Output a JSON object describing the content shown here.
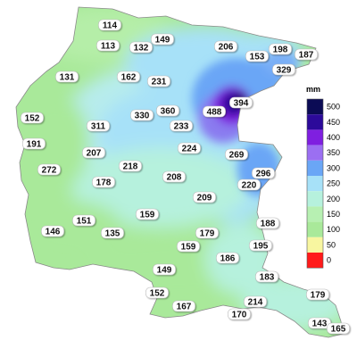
{
  "legend": {
    "unit": "mm",
    "ticks": [
      "500",
      "450",
      "400",
      "350",
      "300",
      "250",
      "200",
      "150",
      "100",
      "50",
      "0"
    ],
    "colors": [
      "#0b0b55",
      "#2c0a9a",
      "#7f1fe0",
      "#9b6ff2",
      "#6aa6f6",
      "#a7e1f8",
      "#b6f1dd",
      "#b7f0b2",
      "#a9e99a",
      "#f8f6a0",
      "#ff1b1b"
    ]
  },
  "values": [
    "114",
    "113",
    "132",
    "149",
    "206",
    "198",
    "187",
    "153",
    "329",
    "131",
    "162",
    "231",
    "152",
    "311",
    "330",
    "360",
    "488",
    "394",
    "233",
    "191",
    "207",
    "218",
    "224",
    "269",
    "272",
    "178",
    "208",
    "296",
    "220",
    "209",
    "146",
    "151",
    "135",
    "159",
    "179",
    "188",
    "195",
    "159",
    "186",
    "149",
    "183",
    "152",
    "167",
    "170",
    "214",
    "179",
    "143",
    "165"
  ]
}
